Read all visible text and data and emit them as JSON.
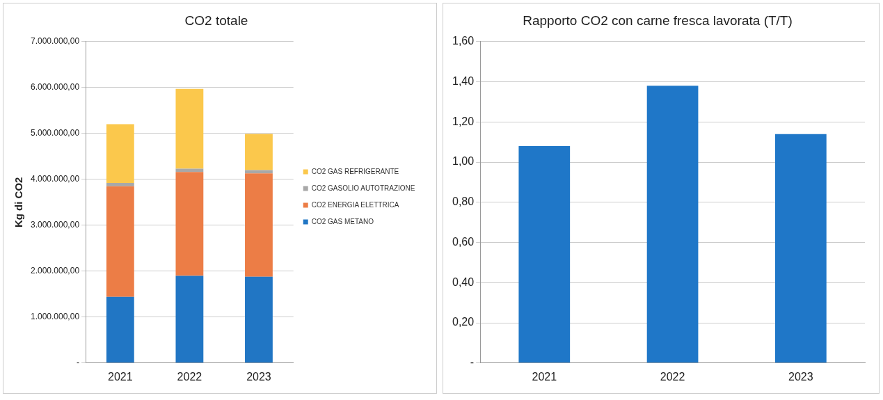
{
  "chart_data": [
    {
      "type": "bar",
      "title": "CO2 totale",
      "ylabel": "Kg di CO2",
      "categories": [
        "2021",
        "2022",
        "2023"
      ],
      "stacked": true,
      "legend": "right",
      "grid": "y",
      "series": [
        {
          "name": "CO2 GAS METANO",
          "color": "#2176c4",
          "values": [
            1440000,
            1900000,
            1880000
          ]
        },
        {
          "name": "CO2 ENERGIA ELETTRICA",
          "color": "#ec7d46",
          "values": [
            2410000,
            2260000,
            2250000
          ]
        },
        {
          "name": "CO2 GASOLIO AUTOTRAZIONE",
          "color": "#a8a8a8",
          "values": [
            70000,
            70000,
            70000
          ]
        },
        {
          "name": "CO2 GAS REFRIGERANTE",
          "color": "#fbc84c",
          "values": [
            1280000,
            1740000,
            790000
          ]
        }
      ],
      "ylim": [
        0,
        7000000
      ],
      "yticks": [
        {
          "value": 0,
          "label": "-"
        },
        {
          "value": 1000000,
          "label": "1.000.000,00"
        },
        {
          "value": 2000000,
          "label": "2.000.000,00"
        },
        {
          "value": 3000000,
          "label": "3.000.000,00"
        },
        {
          "value": 4000000,
          "label": "4.000.000,00"
        },
        {
          "value": 5000000,
          "label": "5.000.000,00"
        },
        {
          "value": 6000000,
          "label": "6.000.000,00"
        },
        {
          "value": 7000000,
          "label": "7.000.000,00"
        }
      ]
    },
    {
      "type": "bar",
      "title": "Rapporto CO2 con carne fresca lavorata (T/T)",
      "categories": [
        "2021",
        "2022",
        "2023"
      ],
      "values": [
        1.08,
        1.38,
        1.14
      ],
      "color": "#1f77c8",
      "grid": "y",
      "ylim": [
        0,
        1.6
      ],
      "yticks": [
        {
          "value": 0,
          "label": "-"
        },
        {
          "value": 0.2,
          "label": "0,20"
        },
        {
          "value": 0.4,
          "label": "0,40"
        },
        {
          "value": 0.6,
          "label": "0,60"
        },
        {
          "value": 0.8,
          "label": "0,80"
        },
        {
          "value": 1.0,
          "label": "1,00"
        },
        {
          "value": 1.2,
          "label": "1,20"
        },
        {
          "value": 1.4,
          "label": "1,40"
        },
        {
          "value": 1.6,
          "label": "1,60"
        }
      ]
    }
  ]
}
